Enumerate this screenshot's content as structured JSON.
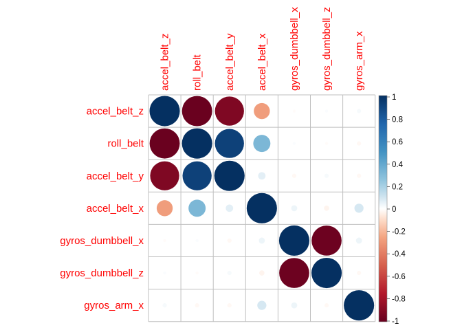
{
  "chart_data": {
    "type": "heatmap",
    "subtype": "correlation-circle-matrix",
    "labels": [
      "accel_belt_z",
      "roll_belt",
      "accel_belt_y",
      "accel_belt_x",
      "gyros_dumbbell_x",
      "gyros_dumbbell_z",
      "gyros_arm_x"
    ],
    "matrix": [
      [
        1.0,
        -0.99,
        -0.92,
        -0.28,
        -0.01,
        0.01,
        0.02
      ],
      [
        -0.99,
        1.0,
        0.92,
        0.32,
        0.01,
        -0.01,
        -0.02
      ],
      [
        -0.92,
        0.92,
        1.0,
        0.06,
        -0.02,
        0.02,
        -0.02
      ],
      [
        -0.28,
        0.32,
        0.06,
        1.0,
        0.04,
        -0.03,
        0.09
      ],
      [
        -0.01,
        0.01,
        -0.02,
        0.04,
        1.0,
        -0.98,
        0.04
      ],
      [
        0.01,
        -0.01,
        0.02,
        -0.03,
        -0.98,
        1.0,
        -0.02
      ],
      [
        0.02,
        -0.02,
        -0.02,
        0.09,
        0.04,
        -0.02,
        1.0
      ]
    ],
    "colorbar": {
      "range": [
        -1,
        1
      ],
      "ticks": [
        "1",
        "0.8",
        "0.6",
        "0.4",
        "0.2",
        "0",
        "-0.2",
        "-0.4",
        "-0.6",
        "-0.8",
        "-1"
      ],
      "colors": {
        "neg_full": "#67001F",
        "neg_mid": "#D6604D",
        "zero": "#FFFFFF",
        "pos_mid": "#4393C3",
        "pos_full": "#053061"
      }
    },
    "label_color": "#FF0000",
    "grid": true,
    "legend_position": "right"
  }
}
